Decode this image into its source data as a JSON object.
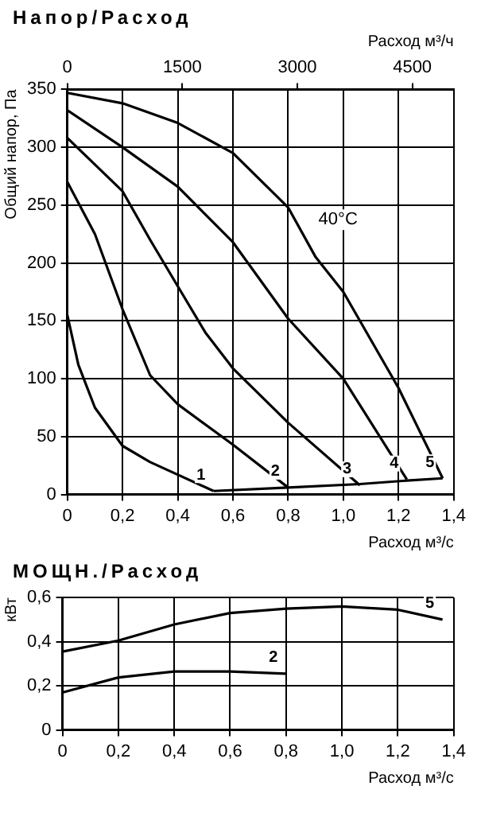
{
  "chart_data": [
    {
      "type": "line",
      "title": "Напор/Расход",
      "ylabel": "Общий напор, Па",
      "xlabel": "Расход м³/с",
      "x2label": "Расход м³/ч",
      "xlim": [
        0,
        1.4
      ],
      "xticks": [
        0,
        {
          "value": 0.2,
          "label": "0,2"
        },
        {
          "value": 0.4,
          "label": "0,4"
        },
        {
          "value": 0.6,
          "label": "0,6"
        },
        {
          "value": 0.8,
          "label": "0,8"
        },
        {
          "value": 1.0,
          "label": "1,0"
        },
        {
          "value": 1.2,
          "label": "1,2"
        },
        {
          "value": 1.4,
          "label": "1,4"
        }
      ],
      "x2lim": [
        0,
        5040
      ],
      "x2ticks": [
        0,
        1500,
        3000,
        4500
      ],
      "ylim": [
        0,
        350
      ],
      "yticks": [
        0,
        50,
        100,
        150,
        200,
        250,
        300,
        350
      ],
      "grid": true,
      "legend": false,
      "marker": "none",
      "line_style": "solid",
      "annotations": [
        "40°C"
      ],
      "series": [
        {
          "name": "1",
          "color": "#000000",
          "x": [
            0,
            0.04,
            0.1,
            0.2,
            0.3,
            0.53
          ],
          "values": [
            155,
            112,
            75,
            42,
            28,
            3
          ]
        },
        {
          "name": "2",
          "color": "#000000",
          "x": [
            0,
            0.1,
            0.2,
            0.3,
            0.4,
            0.6,
            0.8
          ],
          "values": [
            270,
            225,
            160,
            103,
            78,
            43,
            6
          ]
        },
        {
          "name": "3",
          "color": "#000000",
          "x": [
            0,
            0.1,
            0.2,
            0.3,
            0.4,
            0.5,
            0.6,
            0.8,
            1.06
          ],
          "values": [
            308,
            285,
            262,
            220,
            180,
            140,
            109,
            62,
            8
          ]
        },
        {
          "name": "4",
          "color": "#000000",
          "x": [
            0,
            0.2,
            0.4,
            0.6,
            0.8,
            1.0,
            1.23
          ],
          "values": [
            332,
            300,
            266,
            218,
            152,
            100,
            13
          ]
        },
        {
          "name": "5",
          "color": "#000000",
          "x": [
            0,
            0.2,
            0.4,
            0.6,
            0.8,
            0.9,
            1.0,
            1.2,
            1.36
          ],
          "values": [
            347,
            338,
            321,
            295,
            248,
            205,
            175,
            92,
            14
          ]
        },
        {
          "color": "#000000",
          "x": [
            0.53,
            0.8,
            1.06,
            1.23,
            1.36
          ],
          "values": [
            3,
            6,
            9,
            12,
            14
          ]
        }
      ]
    },
    {
      "type": "line",
      "title": "МОЩН./Расход",
      "ylabel": "кВт",
      "xlabel": "Расход м³/с",
      "xlim": [
        0,
        1.4
      ],
      "xticks": [
        0,
        {
          "value": 0.2,
          "label": "0,2"
        },
        {
          "value": 0.4,
          "label": "0,4"
        },
        {
          "value": 0.6,
          "label": "0,6"
        },
        {
          "value": 0.8,
          "label": "0,8"
        },
        {
          "value": 1.0,
          "label": "1,0"
        },
        {
          "value": 1.2,
          "label": "1,2"
        },
        {
          "value": 1.4,
          "label": "1,4"
        }
      ],
      "ylim": [
        0,
        0.6
      ],
      "yticks": [
        0,
        {
          "value": 0.2,
          "label": "0,2"
        },
        {
          "value": 0.4,
          "label": "0,4"
        },
        {
          "value": 0.6,
          "label": "0,6"
        }
      ],
      "grid": true,
      "legend": false,
      "marker": "none",
      "line_style": "solid",
      "series": [
        {
          "name": "5",
          "color": "#000000",
          "x": [
            0,
            0.2,
            0.4,
            0.6,
            0.8,
            1.0,
            1.2,
            1.36
          ],
          "values": [
            0.355,
            0.405,
            0.478,
            0.53,
            0.55,
            0.56,
            0.545,
            0.5
          ]
        },
        {
          "name": "2",
          "color": "#000000",
          "x": [
            0,
            0.2,
            0.4,
            0.6,
            0.8
          ],
          "values": [
            0.17,
            0.238,
            0.265,
            0.265,
            0.255
          ]
        }
      ]
    }
  ]
}
